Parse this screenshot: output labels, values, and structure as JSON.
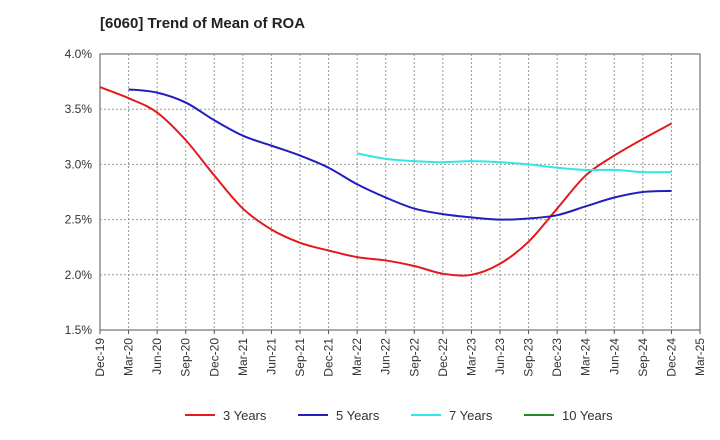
{
  "chart_data": {
    "type": "line",
    "title": "[6060]  Trend of Mean of ROA",
    "xlabel": "",
    "ylabel": "",
    "ylim": [
      1.5,
      4.0
    ],
    "y_ticks": [
      "1.5%",
      "2.0%",
      "2.5%",
      "3.0%",
      "3.5%",
      "4.0%"
    ],
    "y_tick_values": [
      1.5,
      2.0,
      2.5,
      3.0,
      3.5,
      4.0
    ],
    "categories": [
      "Dec-19",
      "Mar-20",
      "Jun-20",
      "Sep-20",
      "Dec-20",
      "Mar-21",
      "Jun-21",
      "Sep-21",
      "Dec-21",
      "Mar-22",
      "Jun-22",
      "Sep-22",
      "Dec-22",
      "Mar-23",
      "Jun-23",
      "Sep-23",
      "Dec-23",
      "Mar-24",
      "Jun-24",
      "Sep-24",
      "Dec-24",
      "Mar-25"
    ],
    "grid": true,
    "legend_position": "bottom",
    "series": [
      {
        "name": "3 Years",
        "color": "#e31a1c",
        "values": [
          3.7,
          3.6,
          3.47,
          3.22,
          2.9,
          2.6,
          2.41,
          2.29,
          2.22,
          2.16,
          2.13,
          2.08,
          2.01,
          2.0,
          2.1,
          2.3,
          2.6,
          2.9,
          3.08,
          3.23,
          3.37,
          null
        ]
      },
      {
        "name": "5 Years",
        "color": "#1f1fbf",
        "values": [
          null,
          3.68,
          3.65,
          3.56,
          3.4,
          3.26,
          3.17,
          3.08,
          2.97,
          2.82,
          2.7,
          2.6,
          2.55,
          2.52,
          2.5,
          2.51,
          2.54,
          2.62,
          2.7,
          2.75,
          2.76,
          null
        ]
      },
      {
        "name": "7 Years",
        "color": "#33e6e6",
        "values": [
          null,
          null,
          null,
          null,
          null,
          null,
          null,
          null,
          null,
          3.1,
          3.05,
          3.03,
          3.02,
          3.03,
          3.02,
          3.0,
          2.97,
          2.95,
          2.95,
          2.93,
          2.93,
          null
        ]
      },
      {
        "name": "10 Years",
        "color": "#228b22",
        "values": [
          null,
          null,
          null,
          null,
          null,
          null,
          null,
          null,
          null,
          null,
          null,
          null,
          null,
          null,
          null,
          null,
          null,
          null,
          null,
          null,
          null,
          null
        ]
      }
    ]
  }
}
